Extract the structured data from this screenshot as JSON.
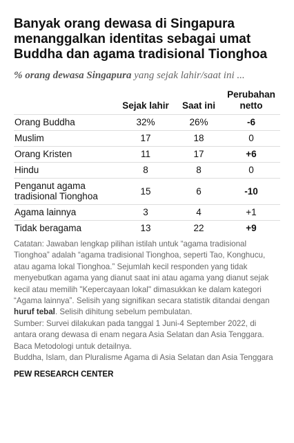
{
  "header": {
    "title": "Banyak orang dewasa di Singapura menanggalkan identitas sebagai umat Buddha dan agama tradisional Tionghoa",
    "subtitle_bold": "% orang dewasa Singapura",
    "subtitle_rest": "yang sejak lahir/saat ini ..."
  },
  "table": {
    "columns": [
      "Sejak lahir",
      "Saat ini",
      "Perubahan netto"
    ],
    "rows": [
      [
        "Orang Buddha",
        "32%",
        "26%",
        "-6"
      ],
      [
        "Muslim",
        "17",
        "18",
        "0"
      ],
      [
        "Orang Kristen",
        "11",
        "17",
        "+6"
      ],
      [
        "Hindu",
        "8",
        "8",
        "0"
      ],
      [
        "Penganut agama tradisional Tionghoa",
        "15",
        "6",
        "-10"
      ],
      [
        "Agama lainnya",
        "3",
        "4",
        "+1"
      ],
      [
        "Tidak beragama",
        "13",
        "22",
        "+9"
      ]
    ],
    "change_bold": [
      true,
      false,
      true,
      false,
      true,
      false,
      true
    ]
  },
  "notes": {
    "note_start": "Catatan: Jawaban lengkap pilihan istilah untuk “agama tradisional Tionghoa” adalah “agama tradisional Tionghoa, seperti Tao, Konghucu, atau agama lokal Tionghoa.” Sejumlah kecil responden yang tidak menyebutkan agama yang dianut saat ini atau agama yang dianut sejak kecil atau memilih \"Kepercayaan lokal\" dimasukkan ke dalam kategori “Agama lainnya”. Selisih yang signifikan secara statistik ditandai dengan",
    "note_bold": "huruf tebal",
    "note_end": ". Selisih dihitung sebelum pembulatan.",
    "source": "Sumber: Survei dilakukan pada tanggal 1 Juni-4 September 2022, di antara orang dewasa di enam negara Asia Selatan dan Asia Tenggara. Baca Metodologi untuk detailnya.",
    "report": "Buddha, Islam, dan Pluralisme Agama di Asia Selatan dan Asia Tenggara"
  },
  "footer": "PEW RESEARCH CENTER"
}
